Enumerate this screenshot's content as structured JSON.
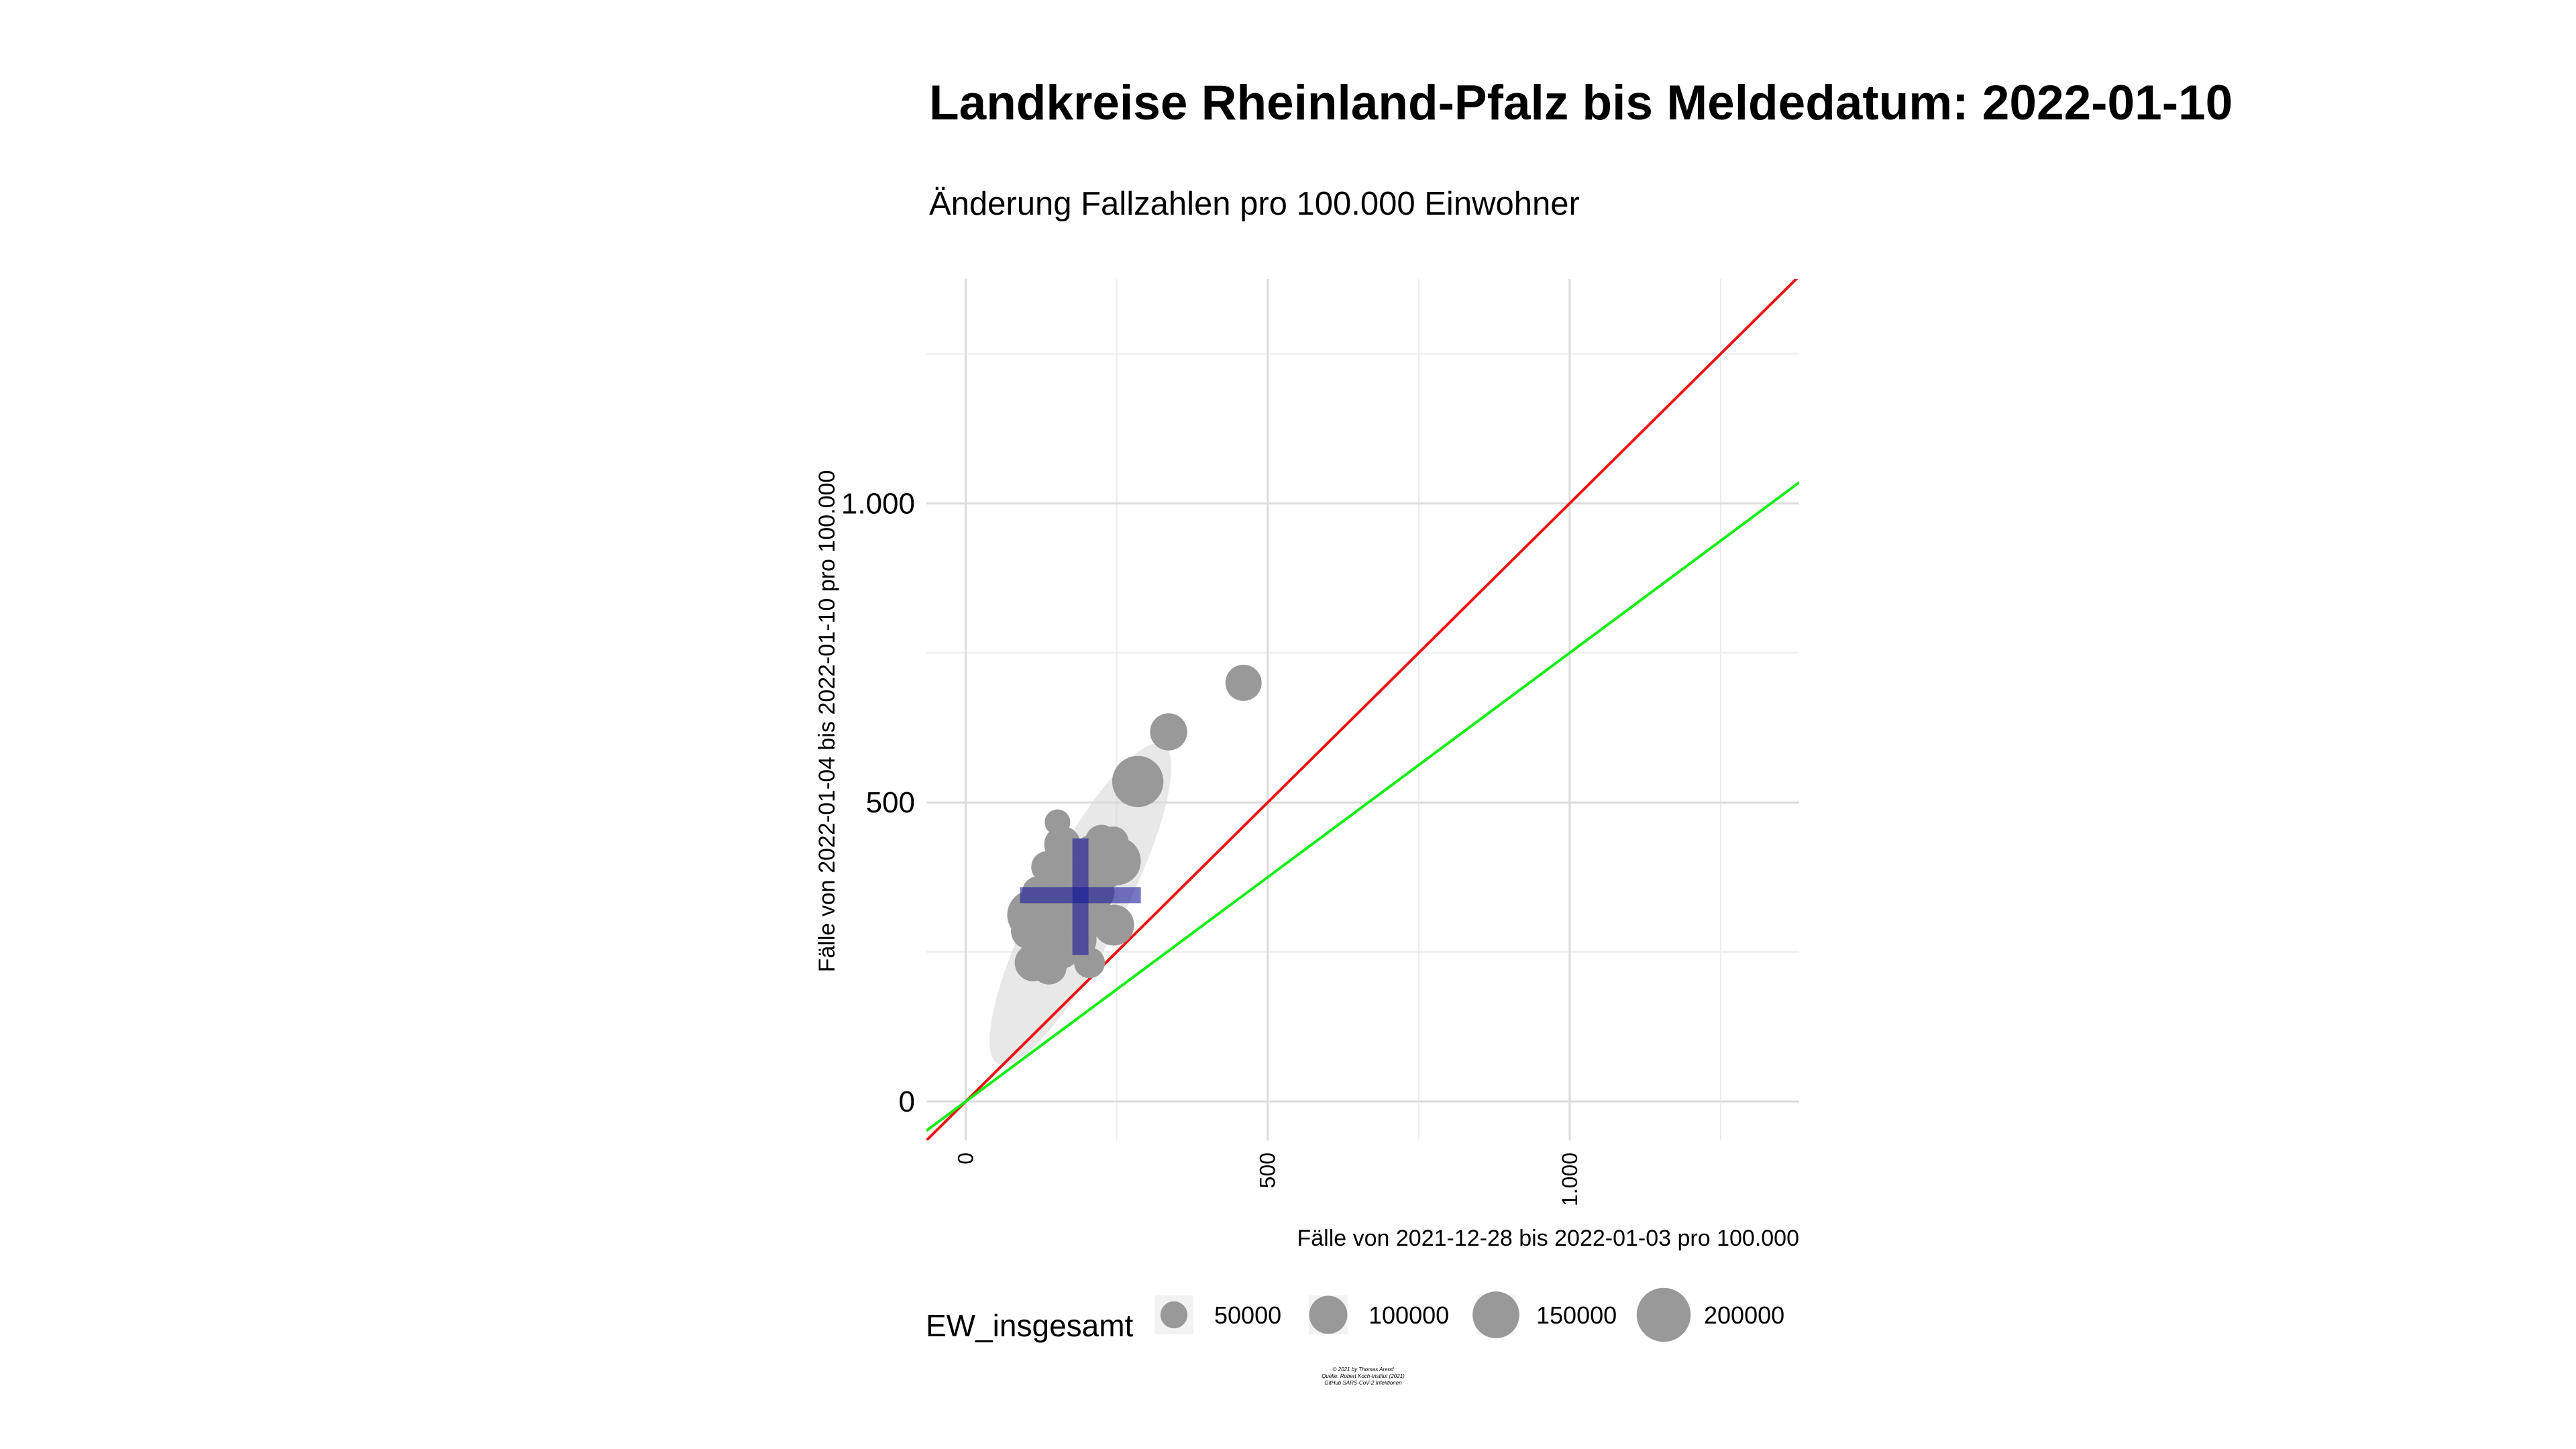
{
  "chart_data": {
    "type": "scatter",
    "title": "Landkreise Rheinland-Pfalz bis Meldedatum: 2022-01-10",
    "subtitle": "Änderung Fallzahlen pro 100.000 Einwohner",
    "xlabel": "Fälle von 2021-12-28 bis 2022-01-03 pro 100.000",
    "ylabel": "Fälle von 2022-01-04 bis 2022-01-10 pro 100.000",
    "xlim": [
      -65,
      1380
    ],
    "ylim": [
      -65,
      1375
    ],
    "x_ticks": [
      {
        "value": 0,
        "label": "0"
      },
      {
        "value": 500,
        "label": "500"
      },
      {
        "value": 1000,
        "label": "1.000"
      }
    ],
    "y_ticks": [
      {
        "value": 0,
        "label": "0"
      },
      {
        "value": 500,
        "label": "500"
      },
      {
        "value": 1000,
        "label": "1.000"
      }
    ],
    "grid": true,
    "point_color": "#999999",
    "points": [
      {
        "x": 460,
        "y": 700,
        "ew": 90000
      },
      {
        "x": 336,
        "y": 618,
        "ew": 95000
      },
      {
        "x": 285,
        "y": 535,
        "ew": 180000
      },
      {
        "x": 152,
        "y": 467,
        "ew": 45000
      },
      {
        "x": 135,
        "y": 392,
        "ew": 70000
      },
      {
        "x": 160,
        "y": 430,
        "ew": 90000
      },
      {
        "x": 225,
        "y": 435,
        "ew": 75000
      },
      {
        "x": 245,
        "y": 435,
        "ew": 60000
      },
      {
        "x": 210,
        "y": 415,
        "ew": 95000
      },
      {
        "x": 250,
        "y": 402,
        "ew": 160000
      },
      {
        "x": 230,
        "y": 388,
        "ew": 110000
      },
      {
        "x": 170,
        "y": 378,
        "ew": 95000
      },
      {
        "x": 195,
        "y": 365,
        "ew": 85000
      },
      {
        "x": 120,
        "y": 350,
        "ew": 70000
      },
      {
        "x": 215,
        "y": 350,
        "ew": 100000
      },
      {
        "x": 180,
        "y": 335,
        "ew": 125000
      },
      {
        "x": 150,
        "y": 330,
        "ew": 130000
      },
      {
        "x": 110,
        "y": 312,
        "ew": 170000
      },
      {
        "x": 128,
        "y": 300,
        "ew": 110000
      },
      {
        "x": 165,
        "y": 300,
        "ew": 150000
      },
      {
        "x": 245,
        "y": 295,
        "ew": 115000
      },
      {
        "x": 200,
        "y": 300,
        "ew": 90000
      },
      {
        "x": 105,
        "y": 285,
        "ew": 90000
      },
      {
        "x": 145,
        "y": 275,
        "ew": 110000
      },
      {
        "x": 185,
        "y": 270,
        "ew": 100000
      },
      {
        "x": 130,
        "y": 255,
        "ew": 85000
      },
      {
        "x": 160,
        "y": 250,
        "ew": 75000
      },
      {
        "x": 205,
        "y": 232,
        "ew": 65000
      },
      {
        "x": 112,
        "y": 232,
        "ew": 95000
      },
      {
        "x": 138,
        "y": 225,
        "ew": 85000
      }
    ],
    "ellipse": {
      "cx": 190,
      "cy": 330,
      "sx": 70,
      "sy": 125,
      "rho": 0.85,
      "level": 2.15,
      "color": "#d9d9d9"
    },
    "mean_cross": {
      "x": 190,
      "y": 345,
      "x_range": [
        90,
        290
      ],
      "y_range": [
        245,
        440
      ],
      "color": "#1a1a99"
    },
    "reference_lines": [
      {
        "slope": 1.0,
        "color": "#ee1111"
      },
      {
        "slope": 0.75,
        "color": "#11ee11"
      }
    ],
    "legend": {
      "title": "EW_insgesamt",
      "placement": "bottom",
      "entries": [
        {
          "label": "50000",
          "ew": 50000
        },
        {
          "label": "100000",
          "ew": 100000
        },
        {
          "label": "150000",
          "ew": 150000
        },
        {
          "label": "200000",
          "ew": 200000
        }
      ]
    },
    "caption_lines": [
      "© 2021 by Thomas Arend",
      "Quelle: Robert Koch-Institut (2021)",
      "GitHub SARS-CoV-2 Infektionen"
    ]
  }
}
